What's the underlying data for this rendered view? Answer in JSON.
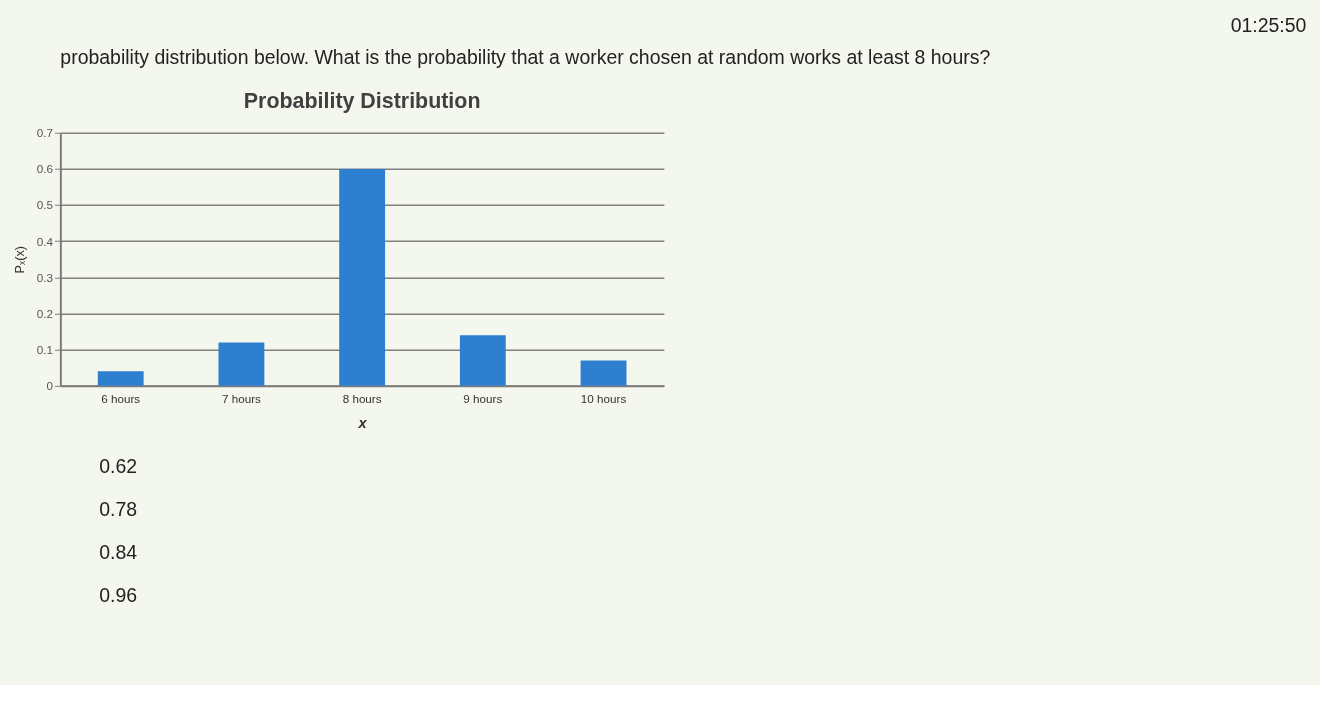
{
  "chart_data": {
    "type": "bar",
    "title": "Probability Distribution",
    "xlabel": "x",
    "ylabel": "Pₓ(x)",
    "categories": [
      "6 hours",
      "7 hours",
      "8 hours",
      "9 hours",
      "10 hours"
    ],
    "values": [
      0.04,
      0.12,
      0.6,
      0.14,
      0.07
    ],
    "color": "#2f7fd0",
    "ylim": [
      0,
      0.7
    ],
    "yticks": [
      0,
      0.1,
      0.2,
      0.3,
      0.4,
      0.5,
      0.6,
      0.7
    ],
    "grid": "y",
    "annotations": [
      "01:25:50",
      "probability distribution below. What is the probability that a worker chosen at random works at least 8 hours?",
      "0.62",
      "0.78",
      "0.84",
      "0.96"
    ]
  }
}
